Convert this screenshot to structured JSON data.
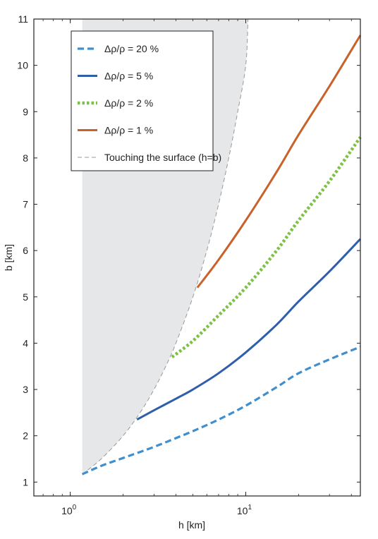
{
  "chart_data": {
    "type": "line",
    "xlabel": "h [km]",
    "ylabel": "b [km]",
    "xscale": "log",
    "xlim": [
      0.62,
      45
    ],
    "ylim": [
      0.7,
      11
    ],
    "xticks": [
      {
        "value": 1,
        "base": "10",
        "exp": "0"
      },
      {
        "value": 10,
        "base": "10",
        "exp": "1"
      }
    ],
    "yticks": [
      1,
      2,
      3,
      4,
      5,
      6,
      7,
      8,
      9,
      10,
      11
    ],
    "grid": false,
    "legend_position": "top-left",
    "shaded_region": {
      "description_color": "#e6e7e8",
      "x": [
        1.17,
        1.5,
        2,
        2.5,
        3,
        3.5,
        4,
        5,
        6,
        7,
        8,
        9,
        10,
        10.3
      ],
      "y_lower": [
        1.17,
        1.5,
        2,
        2.5,
        3,
        3.5,
        4,
        5,
        6,
        7,
        8,
        9,
        10,
        11
      ]
    },
    "series": [
      {
        "name": "Δρ/ρ = 20 %",
        "color": "#3f8fcf",
        "style": "dashed",
        "x": [
          1.17,
          1.5,
          2,
          3,
          4,
          5,
          7,
          10,
          15,
          20,
          30,
          45
        ],
        "y": [
          1.17,
          1.35,
          1.52,
          1.76,
          1.95,
          2.1,
          2.35,
          2.65,
          3.05,
          3.35,
          3.65,
          3.92
        ]
      },
      {
        "name": "Δρ/ρ = 5 %",
        "color": "#2e5fa8",
        "style": "solid",
        "x": [
          2.4,
          3,
          4,
          5,
          7,
          10,
          15,
          20,
          30,
          45
        ],
        "y": [
          2.35,
          2.55,
          2.8,
          3.0,
          3.35,
          3.8,
          4.4,
          4.9,
          5.55,
          6.25
        ]
      },
      {
        "name": "Δρ/ρ = 2 %",
        "color": "#7cc242",
        "style": "dotted",
        "x": [
          3.8,
          5,
          7,
          10,
          15,
          20,
          30,
          45
        ],
        "y": [
          3.7,
          4.05,
          4.6,
          5.2,
          6.0,
          6.65,
          7.5,
          8.45
        ]
      },
      {
        "name": "Δρ/ρ = 1 %",
        "color": "#c8622a",
        "style": "solid",
        "x": [
          5.3,
          7,
          10,
          15,
          20,
          30,
          45
        ],
        "y": [
          5.2,
          5.8,
          6.65,
          7.7,
          8.5,
          9.55,
          10.65
        ]
      },
      {
        "name": "Touching the surface (h=b)",
        "color": "#999999",
        "style": "dashed-thin",
        "x": [
          1.17,
          10.3
        ],
        "y": [
          1.17,
          10.3
        ]
      }
    ]
  }
}
